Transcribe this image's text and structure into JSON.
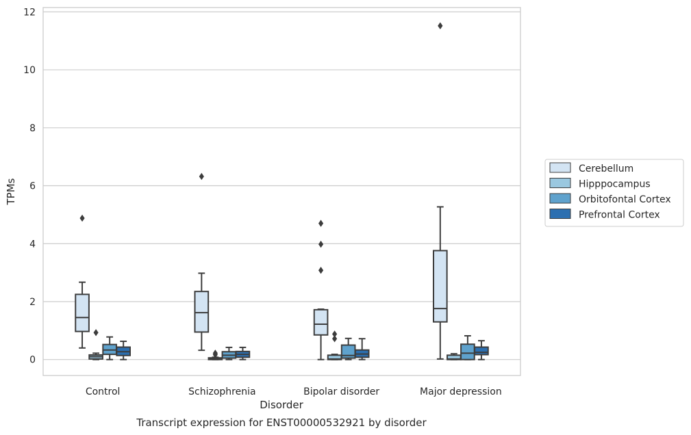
{
  "chart_data": {
    "type": "box",
    "caption": "Transcript expression for ENST00000532921 by disorder",
    "xlabel": "Disorder",
    "ylabel": "TPMs",
    "ylim": [
      -0.55,
      12.15
    ],
    "yticks": [
      0,
      2,
      4,
      6,
      8,
      10,
      12
    ],
    "grid": "horizontal",
    "legend_position": "right",
    "categories": [
      "Control",
      "Schizophrenia",
      "Bipolar disorder",
      "Major depression"
    ],
    "series": [
      {
        "name": "Cerebellum",
        "color": "#d3e4f3",
        "boxes": [
          {
            "whislo": 0.4,
            "q1": 0.97,
            "median": 1.45,
            "q3": 2.25,
            "whishi": 2.67,
            "fliers": [
              4.88
            ]
          },
          {
            "whislo": 0.32,
            "q1": 0.95,
            "median": 1.62,
            "q3": 2.35,
            "whishi": 2.98,
            "fliers": [
              6.32
            ]
          },
          {
            "whislo": 0.0,
            "q1": 0.85,
            "median": 1.22,
            "q3": 1.72,
            "whishi": 1.74,
            "fliers": [
              4.7,
              3.98,
              3.08
            ]
          },
          {
            "whislo": 0.02,
            "q1": 1.3,
            "median": 1.76,
            "q3": 3.76,
            "whishi": 5.27,
            "fliers": [
              11.52
            ]
          }
        ]
      },
      {
        "name": "Hipppocampus",
        "color": "#9ac8e0",
        "boxes": [
          {
            "whislo": 0.0,
            "q1": 0.02,
            "median": 0.1,
            "q3": 0.16,
            "whishi": 0.22,
            "fliers": [
              0.93
            ]
          },
          {
            "whislo": 0.0,
            "q1": 0.0,
            "median": 0.03,
            "q3": 0.06,
            "whishi": 0.08,
            "fliers": [
              0.17,
              0.22
            ]
          },
          {
            "whislo": 0.0,
            "q1": 0.0,
            "median": 0.02,
            "q3": 0.15,
            "whishi": 0.18,
            "fliers": [
              0.88,
              0.72
            ]
          },
          {
            "whislo": 0.0,
            "q1": 0.0,
            "median": 0.02,
            "q3": 0.15,
            "whishi": 0.2,
            "fliers": []
          }
        ]
      },
      {
        "name": "Orbitofontal Cortex",
        "color": "#5fa2cd",
        "boxes": [
          {
            "whislo": 0.0,
            "q1": 0.18,
            "median": 0.33,
            "q3": 0.52,
            "whishi": 0.78,
            "fliers": []
          },
          {
            "whislo": 0.0,
            "q1": 0.05,
            "median": 0.15,
            "q3": 0.27,
            "whishi": 0.42,
            "fliers": []
          },
          {
            "whislo": 0.0,
            "q1": 0.05,
            "median": 0.14,
            "q3": 0.5,
            "whishi": 0.73,
            "fliers": []
          },
          {
            "whislo": 0.0,
            "q1": 0.0,
            "median": 0.22,
            "q3": 0.53,
            "whishi": 0.82,
            "fliers": []
          }
        ]
      },
      {
        "name": "Prefrontal Cortex",
        "color": "#2c6fb0",
        "boxes": [
          {
            "whislo": 0.0,
            "q1": 0.14,
            "median": 0.27,
            "q3": 0.43,
            "whishi": 0.63,
            "fliers": []
          },
          {
            "whislo": 0.0,
            "q1": 0.08,
            "median": 0.18,
            "q3": 0.28,
            "whishi": 0.42,
            "fliers": []
          },
          {
            "whislo": 0.0,
            "q1": 0.08,
            "median": 0.19,
            "q3": 0.33,
            "whishi": 0.72,
            "fliers": []
          },
          {
            "whislo": 0.0,
            "q1": 0.17,
            "median": 0.25,
            "q3": 0.43,
            "whishi": 0.65,
            "fliers": []
          }
        ]
      }
    ]
  }
}
